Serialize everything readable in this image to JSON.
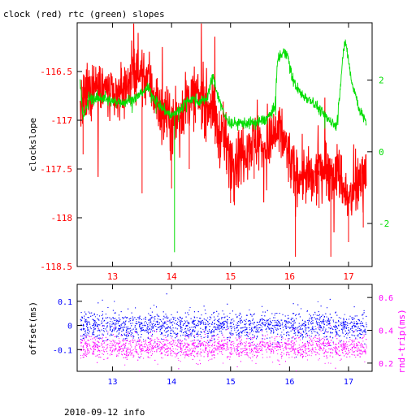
{
  "page": {
    "title": "clock (red) rtc (green) slopes",
    "footer": "2010-09-12 info"
  },
  "chart_data": [
    {
      "type": "line",
      "title": "clock (red) rtc (green) slopes",
      "xlabel": "",
      "x_ticks": [
        "13",
        "14",
        "15",
        "16",
        "17"
      ],
      "xlim": [
        12.4,
        17.4
      ],
      "grid": false,
      "left_axis": {
        "ylabel": "clockslope",
        "ylim": [
          -118.5,
          -116.0
        ],
        "ticks": [
          "-116.5",
          "-117",
          "-117.5",
          "-118",
          "-118.5"
        ],
        "color": "#ff0000"
      },
      "right_axis": {
        "ylabel": "",
        "ylim": [
          -3.2,
          3.6
        ],
        "ticks": [
          "2",
          "0",
          "-2"
        ],
        "color": "#00dd00"
      },
      "series": [
        {
          "axis": "left",
          "color": "#ff0000",
          "x": [
            12.45,
            12.6,
            12.8,
            13.0,
            13.2,
            13.4,
            13.6,
            13.75,
            13.9,
            14.0,
            14.1,
            14.25,
            14.4,
            14.55,
            14.7,
            14.8,
            14.9,
            15.0,
            15.15,
            15.3,
            15.45,
            15.6,
            15.75,
            15.85,
            15.95,
            16.1,
            16.25,
            16.4,
            16.55,
            16.7,
            16.85,
            17.0,
            17.1,
            17.2,
            17.3
          ],
          "y": [
            -116.9,
            -116.7,
            -116.6,
            -116.8,
            -116.65,
            -116.5,
            -116.55,
            -116.8,
            -116.95,
            -117.05,
            -117.0,
            -116.8,
            -116.75,
            -116.8,
            -116.9,
            -117.15,
            -117.2,
            -117.4,
            -117.35,
            -117.25,
            -117.2,
            -117.3,
            -117.15,
            -117.1,
            -117.3,
            -117.6,
            -117.55,
            -117.65,
            -117.45,
            -117.5,
            -117.55,
            -117.85,
            -117.75,
            -117.6,
            -117.5
          ],
          "noise": 0.15,
          "spikes": [
            [
              12.5,
              -117.35
            ],
            [
              13.5,
              -117.75
            ],
            [
              14.0,
              -117.7
            ],
            [
              14.3,
              -117.5
            ],
            [
              15.0,
              -117.85
            ],
            [
              15.4,
              -117.6
            ],
            [
              16.1,
              -118.4
            ],
            [
              16.5,
              -117.9
            ],
            [
              16.7,
              -118.4
            ],
            [
              17.0,
              -118.25
            ],
            [
              17.25,
              -118.1
            ]
          ]
        },
        {
          "axis": "right",
          "color": "#00dd00",
          "x": [
            12.45,
            12.5,
            12.6,
            12.8,
            13.0,
            13.2,
            13.4,
            13.6,
            13.7,
            13.85,
            14.0,
            14.15,
            14.3,
            14.5,
            14.6,
            14.7,
            14.8,
            14.9,
            15.0,
            15.2,
            15.4,
            15.6,
            15.75,
            15.8,
            15.95,
            16.05,
            16.2,
            16.4,
            16.6,
            16.8,
            16.9,
            16.95,
            17.05,
            17.2,
            17.3
          ],
          "y": [
            2.0,
            0.9,
            1.5,
            1.5,
            1.4,
            1.4,
            1.5,
            1.8,
            1.5,
            1.2,
            1.0,
            1.2,
            1.5,
            1.4,
            1.5,
            2.1,
            1.5,
            1.0,
            0.8,
            0.8,
            0.8,
            0.9,
            1.2,
            2.6,
            2.8,
            2.0,
            1.6,
            1.4,
            1.0,
            0.7,
            2.6,
            3.1,
            2.0,
            1.1,
            0.8
          ],
          "noise": 0.08,
          "spikes": [
            [
              14.05,
              -2.8
            ]
          ]
        }
      ]
    },
    {
      "type": "scatter",
      "title": "",
      "xlabel": "",
      "x_ticks": [
        "13",
        "14",
        "15",
        "16",
        "17"
      ],
      "xlim": [
        12.4,
        17.4
      ],
      "grid": false,
      "left_axis": {
        "ylabel": "offset(ms)",
        "ylim": [
          -0.19,
          0.17
        ],
        "ticks": [
          "0.1",
          "0",
          "-0.1"
        ],
        "color": "#0000ff"
      },
      "right_axis": {
        "ylabel": "rnd-trip(ms)",
        "ylim": [
          0.15,
          0.68
        ],
        "ticks": [
          "0.6",
          "0.4",
          "0.2"
        ],
        "color": "#ff00ff"
      },
      "series": [
        {
          "axis": "left",
          "color": "#0000ff",
          "x_range": [
            12.45,
            17.3
          ],
          "center": 0.0,
          "spread": 0.05,
          "count": 3200
        },
        {
          "axis": "right",
          "color": "#ff00ff",
          "x_range": [
            12.45,
            17.3
          ],
          "center": 0.3,
          "spread": 0.06,
          "count": 2600
        }
      ]
    }
  ]
}
